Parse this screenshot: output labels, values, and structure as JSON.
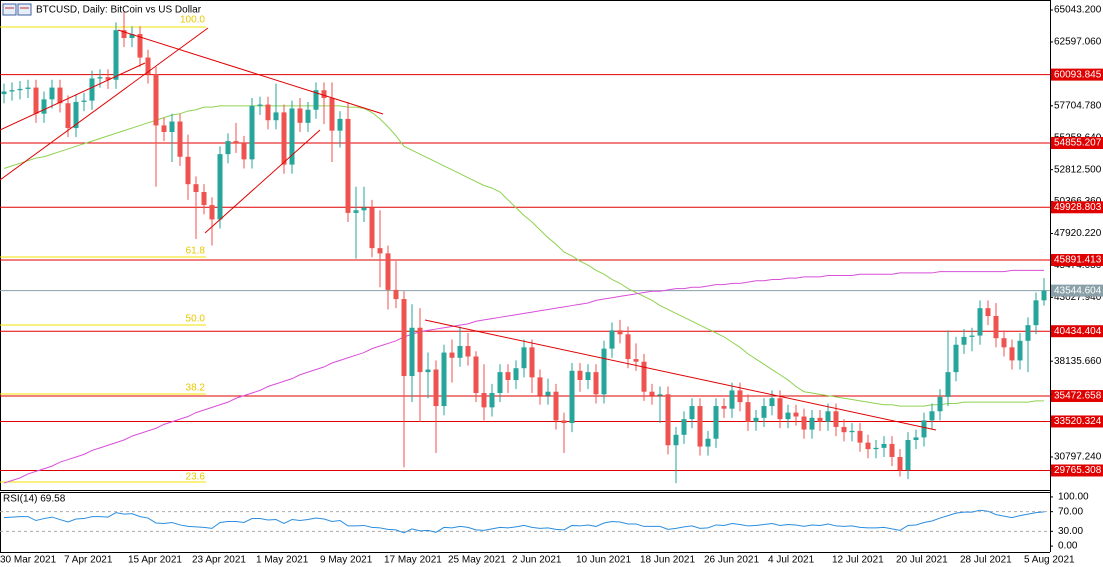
{
  "chart_data": [
    {
      "type": "candlestick",
      "title": "BTCUSD, Daily:  BitCoin vs US Dollar",
      "categories": [
        "30 Mar 2021",
        null,
        null,
        null,
        null,
        null,
        null,
        null,
        "7 Apr 2021",
        null,
        null,
        null,
        null,
        null,
        null,
        null,
        "15 Apr 2021",
        null,
        null,
        null,
        null,
        null,
        null,
        null,
        "23 Apr 2021",
        null,
        null,
        null,
        null,
        null,
        null,
        null,
        "1 May 2021",
        null,
        null,
        null,
        null,
        null,
        null,
        null,
        "9 May 2021",
        null,
        null,
        null,
        null,
        null,
        null,
        null,
        "17 May 2021",
        null,
        null,
        null,
        null,
        null,
        null,
        null,
        "25 May 2021",
        null,
        null,
        null,
        null,
        null,
        null,
        null,
        "2 Jun 2021",
        null,
        null,
        null,
        null,
        null,
        null,
        null,
        "10 Jun 2021",
        null,
        null,
        null,
        null,
        null,
        null,
        null,
        "18 Jun 2021",
        null,
        null,
        null,
        null,
        null,
        null,
        null,
        "26 Jun 2021",
        null,
        null,
        null,
        null,
        null,
        null,
        null,
        "4 Jul 2021",
        null,
        null,
        null,
        null,
        null,
        null,
        null,
        "12 Jul 2021",
        null,
        null,
        null,
        null,
        null,
        null,
        null,
        "20 Jul 2021",
        null,
        null,
        null,
        null,
        null,
        null,
        null,
        "28 Jul 2021",
        null,
        null,
        null,
        null,
        null,
        null,
        null,
        "5 Aug 2021",
        null,
        null
      ],
      "open": [
        58600,
        58800,
        58900,
        59000,
        59100,
        57100,
        58200,
        59100,
        57900,
        56000,
        58000,
        58100,
        59800,
        59900,
        59700,
        63500,
        62900,
        63200,
        61400,
        60100,
        56200,
        55700,
        56500,
        53800,
        51700,
        51100,
        50100,
        49000,
        54000,
        55000,
        54800,
        53600,
        57700,
        57800,
        56600,
        57200,
        53200,
        57500,
        56400,
        57400,
        58900,
        58300,
        55800,
        56700,
        49500,
        49700,
        49900,
        46800,
        46400,
        43600,
        42900,
        37000,
        40700,
        37300,
        37500,
        34700,
        38800,
        38400,
        39300,
        38500,
        35700,
        34600,
        35700,
        37300,
        36700,
        37600,
        39200,
        36900,
        35500,
        35800,
        33600,
        33400,
        37400,
        36700,
        37300,
        35600,
        39100,
        40500,
        40200,
        38300,
        38100,
        35800,
        35500,
        35600,
        31700,
        32500,
        33700,
        34700,
        31600,
        32200,
        34700,
        34500,
        35900,
        35000,
        33500,
        33800,
        34700,
        35300,
        33700,
        34200,
        33900,
        32900,
        33800,
        33500,
        34300,
        33100,
        32700,
        32800,
        31900,
        31400,
        31500,
        31800,
        30800,
        29800,
        32100,
        32300,
        33600,
        34300,
        35400,
        37300,
        39400,
        40000,
        40100,
        42200,
        41600,
        39900,
        39200,
        38200,
        39700,
        40900,
        42800
      ],
      "high": [
        59400,
        59500,
        59600,
        59700,
        59700,
        58800,
        59700,
        59700,
        58500,
        58600,
        58700,
        60400,
        60500,
        60500,
        64100,
        64900,
        63800,
        63800,
        62000,
        60700,
        56800,
        57100,
        57100,
        55500,
        52300,
        51700,
        50700,
        54600,
        55600,
        56400,
        55400,
        58300,
        58400,
        58400,
        59400,
        57800,
        58100,
        58300,
        58000,
        59500,
        59500,
        59500,
        57300,
        58000,
        51500,
        51500,
        50500,
        49700,
        47000,
        45800,
        43500,
        42500,
        42200,
        38800,
        38200,
        39400,
        39800,
        40800,
        40300,
        38900,
        37900,
        36400,
        37900,
        37900,
        38200,
        39800,
        39800,
        37500,
        36800,
        36400,
        34200,
        38000,
        38000,
        37900,
        37900,
        39700,
        41100,
        41300,
        40800,
        39500,
        38700,
        36400,
        36200,
        36200,
        33100,
        34300,
        35300,
        35300,
        32800,
        35300,
        35300,
        36500,
        36500,
        35600,
        34400,
        35300,
        35900,
        35900,
        34800,
        34800,
        34500,
        34400,
        34400,
        34900,
        34900,
        33700,
        33400,
        33400,
        32500,
        32100,
        32400,
        32400,
        31400,
        32700,
        32900,
        34200,
        34900,
        36000,
        40500,
        40000,
        40600,
        40700,
        42800,
        42800,
        42600,
        40500,
        39800,
        40300,
        41500,
        43400,
        44500
      ],
      "low": [
        57900,
        58100,
        58200,
        58300,
        56400,
        56400,
        57500,
        57200,
        55300,
        55300,
        57300,
        57400,
        59100,
        59000,
        59000,
        62200,
        62200,
        60700,
        59400,
        51500,
        55000,
        53400,
        53100,
        50500,
        47500,
        49400,
        47000,
        48300,
        53300,
        54100,
        52900,
        52900,
        57000,
        55900,
        55900,
        52500,
        52500,
        55700,
        55700,
        56700,
        56300,
        53400,
        54500,
        48800,
        46000,
        48800,
        46100,
        43800,
        42100,
        42200,
        30000,
        35000,
        33500,
        35300,
        31100,
        34000,
        36500,
        37700,
        37800,
        35000,
        33600,
        33900,
        35000,
        35700,
        36000,
        36900,
        35700,
        34800,
        34800,
        32900,
        31100,
        32700,
        35800,
        36000,
        34900,
        34900,
        38400,
        39500,
        37600,
        37400,
        35100,
        34800,
        33400,
        31000,
        28800,
        31800,
        33000,
        30900,
        30900,
        31500,
        33800,
        33800,
        34300,
        32800,
        32800,
        33100,
        34000,
        33000,
        33000,
        33200,
        32200,
        32200,
        32800,
        32800,
        32400,
        32000,
        32000,
        31200,
        30700,
        30700,
        30800,
        30100,
        29300,
        29100,
        31400,
        31600,
        32900,
        33600,
        34700,
        36600,
        38700,
        38900,
        39400,
        40900,
        39200,
        38500,
        37500,
        37500,
        37300,
        40200,
        42400
      ],
      "close": [
        58800,
        58900,
        59000,
        59100,
        57100,
        58200,
        59100,
        57900,
        56000,
        58000,
        58100,
        59800,
        59900,
        59700,
        63500,
        62900,
        63200,
        61400,
        60100,
        56200,
        55700,
        56500,
        53800,
        51700,
        51100,
        50100,
        49000,
        54000,
        55000,
        54800,
        53600,
        57700,
        57800,
        56600,
        57200,
        53200,
        57500,
        56400,
        57400,
        58900,
        58300,
        55800,
        56700,
        49500,
        49700,
        49900,
        46800,
        46400,
        43600,
        42900,
        37000,
        40700,
        37300,
        37500,
        34700,
        38800,
        38400,
        39300,
        38500,
        35700,
        34600,
        35700,
        37300,
        36700,
        37600,
        39200,
        36900,
        35500,
        35800,
        33600,
        33400,
        37400,
        36700,
        37300,
        35600,
        39100,
        40500,
        40200,
        38300,
        38100,
        35800,
        35500,
        35600,
        31700,
        32500,
        33700,
        34700,
        31600,
        32200,
        34700,
        34500,
        35900,
        35000,
        33500,
        33800,
        34700,
        35300,
        33700,
        34200,
        33900,
        32900,
        33800,
        33500,
        34300,
        33100,
        32700,
        32800,
        31900,
        31400,
        31500,
        31800,
        30800,
        29800,
        32100,
        32300,
        33600,
        34300,
        35400,
        37300,
        39400,
        40000,
        40100,
        42200,
        41600,
        39900,
        39200,
        38200,
        39700,
        40900,
        42800,
        43544.604
      ],
      "up_color": "#26a69a",
      "down_color": "#ef5350",
      "overlays": [
        {
          "color": "#8fd14f",
          "values": [
            52900,
            53100,
            53300,
            53500,
            53700,
            53800,
            54000,
            54200,
            54400,
            54600,
            54800,
            55000,
            55200,
            55400,
            55600,
            55800,
            56000,
            56200,
            56400,
            56600,
            56800,
            57000,
            57100,
            57300,
            57400,
            57600,
            57600,
            57700,
            57700,
            57700,
            57700,
            57700,
            57700,
            57700,
            57700,
            57700,
            57700,
            57700,
            57700,
            57700,
            57700,
            57700,
            57700,
            57600,
            57600,
            57500,
            57200,
            56700,
            56100,
            55400,
            54600,
            54300,
            54000,
            53700,
            53400,
            53100,
            52800,
            52500,
            52200,
            51900,
            51600,
            51400,
            51100,
            50500,
            49900,
            49300,
            48800,
            48200,
            47600,
            47100,
            46500,
            46200,
            45800,
            45500,
            45100,
            44800,
            44400,
            44100,
            43700,
            43400,
            43100,
            42800,
            42400,
            42100,
            41800,
            41500,
            41200,
            40900,
            40600,
            40300,
            40000,
            39600,
            39200,
            38700,
            38300,
            37900,
            37500,
            37100,
            36700,
            36200,
            35800,
            35700,
            35600,
            35500,
            35400,
            35300,
            35200,
            35100,
            35000,
            34900,
            34800,
            34800,
            34700,
            34700,
            34700,
            34700,
            34800,
            34800,
            34900,
            34900,
            35000,
            35000,
            35000,
            35000,
            35000,
            35000,
            35000,
            35000,
            35000,
            35100,
            35100
          ]
        },
        {
          "color": "#d94fd9",
          "values": [
            28800,
            29000,
            29200,
            29500,
            29700,
            29900,
            30100,
            30400,
            30600,
            30800,
            31000,
            31300,
            31500,
            31700,
            31900,
            32100,
            32400,
            32600,
            32800,
            33000,
            33300,
            33500,
            33700,
            33900,
            34200,
            34400,
            34600,
            34800,
            35000,
            35300,
            35500,
            35700,
            35900,
            36200,
            36400,
            36600,
            36800,
            37100,
            37300,
            37500,
            37700,
            38000,
            38200,
            38400,
            38600,
            38800,
            39100,
            39300,
            39500,
            39700,
            40000,
            40200,
            40400,
            40500,
            40600,
            40700,
            40800,
            40900,
            41000,
            41200,
            41300,
            41400,
            41500,
            41600,
            41700,
            41800,
            41900,
            42000,
            42100,
            42200,
            42300,
            42400,
            42500,
            42600,
            42800,
            42900,
            43000,
            43100,
            43200,
            43300,
            43400,
            43500,
            43500,
            43600,
            43700,
            43700,
            43800,
            43800,
            43900,
            44000,
            44000,
            44100,
            44100,
            44200,
            44300,
            44300,
            44400,
            44400,
            44500,
            44500,
            44600,
            44600,
            44600,
            44700,
            44700,
            44700,
            44700,
            44800,
            44800,
            44800,
            44800,
            44800,
            44900,
            44900,
            44900,
            44900,
            44900,
            45000,
            45000,
            45000,
            45000,
            45000,
            45000,
            45000,
            45000,
            45000,
            45100,
            45100,
            45100,
            45100,
            45100
          ]
        }
      ],
      "ylim": [
        28270,
        65810
      ],
      "yticks": [
        {
          "value": 65043.2,
          "label": "65043.200"
        },
        {
          "value": 62597.06,
          "label": "62597.060"
        },
        {
          "value": 57704.78,
          "label": "57704.780"
        },
        {
          "value": 55258.64,
          "label": "55258.640"
        },
        {
          "value": 52812.5,
          "label": "52812.500"
        },
        {
          "value": 50366.36,
          "label": "50366.360"
        },
        {
          "value": 47920.22,
          "label": "47920.220"
        },
        {
          "value": 45474.08,
          "label": "45474.080"
        },
        {
          "value": 43027.94,
          "label": "43027.940"
        },
        {
          "value": 38135.66,
          "label": "38135.660"
        },
        {
          "value": 30797.24,
          "label": "30797.240"
        }
      ],
      "levels": [
        {
          "value": 60093.845,
          "label": "60093.845"
        },
        {
          "value": 54855.207,
          "label": "54855.207"
        },
        {
          "value": 49928.803,
          "label": "49928.803"
        },
        {
          "value": 45891.413,
          "label": "45891.413"
        },
        {
          "value": 40434.404,
          "label": "40434.404"
        },
        {
          "value": 35472.658,
          "label": "35472.658"
        },
        {
          "value": 33520.324,
          "label": "33520.324"
        },
        {
          "value": 29765.308,
          "label": "29765.308"
        }
      ],
      "level_color": "#e00000",
      "current_price": {
        "value": 43544.604,
        "label": "43544.604"
      },
      "current_price_color": "#8aa0a8",
      "fibonacci": [
        "100.0",
        "61.8",
        "50.0",
        "38.2",
        "23.6"
      ]
    },
    {
      "type": "line",
      "title": "RSI(14) 69.58",
      "color": "#2b8ee0",
      "values": [
        58,
        59,
        60,
        60,
        52,
        56,
        59,
        54,
        49,
        55,
        56,
        60,
        60,
        59,
        68,
        65,
        66,
        60,
        57,
        47,
        46,
        48,
        43,
        40,
        39,
        38,
        36,
        48,
        50,
        50,
        48,
        56,
        56,
        53,
        54,
        46,
        54,
        52,
        54,
        57,
        55,
        50,
        52,
        41,
        41,
        42,
        38,
        37,
        34,
        33,
        27,
        35,
        31,
        32,
        28,
        38,
        37,
        40,
        38,
        33,
        32,
        35,
        38,
        37,
        39,
        42,
        38,
        36,
        37,
        34,
        33,
        42,
        41,
        43,
        40,
        47,
        50,
        49,
        45,
        45,
        40,
        40,
        40,
        34,
        36,
        39,
        41,
        36,
        37,
        43,
        42,
        46,
        44,
        41,
        42,
        44,
        46,
        42,
        44,
        43,
        40,
        43,
        42,
        45,
        41,
        40,
        41,
        38,
        37,
        37,
        38,
        35,
        32,
        42,
        43,
        48,
        51,
        57,
        62,
        67,
        69,
        69,
        73,
        71,
        64,
        61,
        58,
        62,
        65,
        68,
        69.58
      ],
      "ylim": [
        -12,
        110
      ],
      "yticks": [
        {
          "value": 100,
          "label": "100.00"
        },
        {
          "value": 70,
          "label": "70.00"
        },
        {
          "value": 30,
          "label": "30.00"
        },
        {
          "value": 0,
          "label": "0.00"
        }
      ],
      "levels": [
        70,
        30
      ]
    }
  ]
}
